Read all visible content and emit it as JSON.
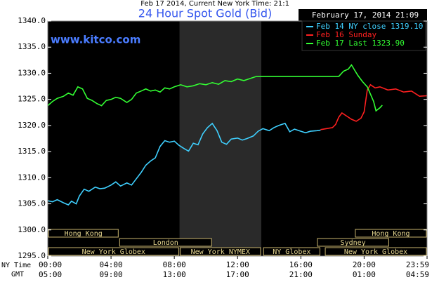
{
  "chart_data": {
    "type": "line",
    "top_note": "Feb 17 2014, Current New York Time: 21:1",
    "title": "24 Hour Spot Gold (Bid)",
    "date_label": "February 17, 2014 21:09",
    "site": "www.kitco.com",
    "xlim": [
      0,
      23.98
    ],
    "ylim": [
      1295,
      1340
    ],
    "grid": false,
    "legend": "top-right",
    "yticks": [
      {
        "value": 1295,
        "label": "1295.0"
      },
      {
        "value": 1300,
        "label": "1300.0"
      },
      {
        "value": 1305,
        "label": "1305.0"
      },
      {
        "value": 1310,
        "label": "1310.0"
      },
      {
        "value": 1315,
        "label": "1315.0"
      },
      {
        "value": 1320,
        "label": "1320.0"
      },
      {
        "value": 1325,
        "label": "1325.0"
      },
      {
        "value": 1330,
        "label": "1330.0"
      },
      {
        "value": 1335,
        "label": "1335.0"
      },
      {
        "value": 1340,
        "label": "1340.0"
      }
    ],
    "xticks": [
      {
        "value": 0,
        "label": "00:00"
      },
      {
        "value": 4,
        "label": "04:00"
      },
      {
        "value": 8,
        "label": "08:00"
      },
      {
        "value": 12,
        "label": "12:00"
      },
      {
        "value": 16,
        "label": "16:00"
      },
      {
        "value": 20,
        "label": "20:00"
      },
      {
        "value": 23.98,
        "label": "23:59"
      }
    ],
    "gmt_labels": [
      "05:00",
      "09:00",
      "13:00",
      "17:00",
      "21:00",
      "01:00",
      "04:59"
    ],
    "x_axis_labels": [
      "NY Time",
      "GMT"
    ],
    "session_rows": [
      [
        {
          "name": "Hong Kong",
          "start": 0,
          "end": 4.5
        },
        {
          "name": "Hong Kong",
          "start": 19.4,
          "end": 23.98
        }
      ],
      [
        {
          "name": "London",
          "start": 4.5,
          "end": 10.4
        },
        {
          "name": "Sydney",
          "start": 17.0,
          "end": 21.6
        }
      ],
      [
        {
          "name": "New York Globex",
          "start": 0,
          "end": 8.33
        },
        {
          "name": "New York NYMEX",
          "start": 8.33,
          "end": 13.5,
          "shade": true
        },
        {
          "name": "NY Globex",
          "start": 13.6,
          "end": 17.25
        },
        {
          "name": "New York Globex",
          "start": 17.5,
          "end": 23.98
        }
      ]
    ],
    "series": [
      {
        "name": "Feb 14 NY close 1319.10",
        "color": "#3fd0ff",
        "x": [
          0,
          0.3,
          0.6,
          1,
          1.3,
          1.5,
          1.8,
          2,
          2.3,
          2.6,
          3,
          3.3,
          3.6,
          4,
          4.3,
          4.6,
          5,
          5.3,
          5.6,
          5.9,
          6.2,
          6.5,
          6.8,
          7.1,
          7.4,
          7.7,
          8,
          8.3,
          8.6,
          8.9,
          9.2,
          9.5,
          9.8,
          10.1,
          10.4,
          10.7,
          11,
          11.3,
          11.6,
          12,
          12.3,
          12.6,
          13,
          13.3,
          13.6,
          14,
          14.3,
          14.6,
          15,
          15.3,
          15.6,
          16,
          16.3,
          16.6,
          17,
          17.25
        ],
        "values": [
          1305.6,
          1305.4,
          1305.8,
          1305.2,
          1304.8,
          1305.5,
          1305.0,
          1306.5,
          1307.8,
          1307.4,
          1308.2,
          1307.9,
          1308.0,
          1308.6,
          1309.2,
          1308.4,
          1309.0,
          1308.6,
          1309.8,
          1311.0,
          1312.4,
          1313.2,
          1313.8,
          1316.0,
          1317.1,
          1316.8,
          1317.0,
          1316.2,
          1315.6,
          1315.1,
          1316.6,
          1316.3,
          1318.4,
          1319.6,
          1320.4,
          1319.0,
          1316.8,
          1316.4,
          1317.4,
          1317.6,
          1317.2,
          1317.5,
          1318.0,
          1318.9,
          1319.4,
          1319.0,
          1319.6,
          1320.0,
          1320.4,
          1318.8,
          1319.3,
          1318.9,
          1318.6,
          1318.9,
          1319.0,
          1319.1
        ]
      },
      {
        "name": "Feb 16 Sunday",
        "color": "#ff2020",
        "x": [
          17.25,
          17.6,
          18,
          18.2,
          18.4,
          18.6,
          18.9,
          19.2,
          19.5,
          19.8,
          20.0,
          20.2,
          20.4,
          20.7,
          21,
          21.5,
          22,
          22.5,
          23,
          23.5,
          23.98
        ],
        "values": [
          1319.2,
          1319.4,
          1319.6,
          1320.2,
          1321.6,
          1322.4,
          1321.8,
          1321.2,
          1320.8,
          1321.4,
          1322.6,
          1326.8,
          1327.8,
          1327.2,
          1327.4,
          1326.8,
          1327.0,
          1326.4,
          1326.6,
          1325.6,
          1325.7
        ]
      },
      {
        "name": "Feb 17 Last 1323.90",
        "color": "#33ff33",
        "x": [
          0,
          0.3,
          0.6,
          1,
          1.3,
          1.6,
          1.9,
          2.2,
          2.5,
          2.8,
          3.1,
          3.4,
          3.7,
          4,
          4.3,
          4.6,
          5,
          5.3,
          5.6,
          5.9,
          6.2,
          6.5,
          6.8,
          7.1,
          7.4,
          7.7,
          8,
          8.4,
          8.8,
          9.2,
          9.6,
          10,
          10.4,
          10.8,
          11.2,
          11.6,
          12,
          12.4,
          12.8,
          13.2,
          18.4,
          18.7,
          19.0,
          19.2,
          19.4,
          19.6,
          19.9,
          20.2,
          20.4,
          20.6,
          20.75,
          21.0,
          21.15
        ],
        "values": [
          1323.8,
          1324.6,
          1325.2,
          1325.6,
          1326.2,
          1325.8,
          1327.4,
          1327.0,
          1325.2,
          1324.8,
          1324.2,
          1323.8,
          1324.8,
          1325.0,
          1325.4,
          1325.2,
          1324.4,
          1325.0,
          1326.2,
          1326.6,
          1327.0,
          1326.6,
          1326.8,
          1326.4,
          1327.2,
          1327.0,
          1327.4,
          1327.8,
          1327.4,
          1327.6,
          1328.0,
          1327.8,
          1328.2,
          1327.9,
          1328.6,
          1328.4,
          1328.9,
          1328.6,
          1329.0,
          1329.4,
          1329.4,
          1330.4,
          1330.8,
          1331.6,
          1330.6,
          1329.6,
          1328.4,
          1327.4,
          1326.0,
          1324.6,
          1322.8,
          1323.4,
          1323.9
        ]
      }
    ]
  }
}
